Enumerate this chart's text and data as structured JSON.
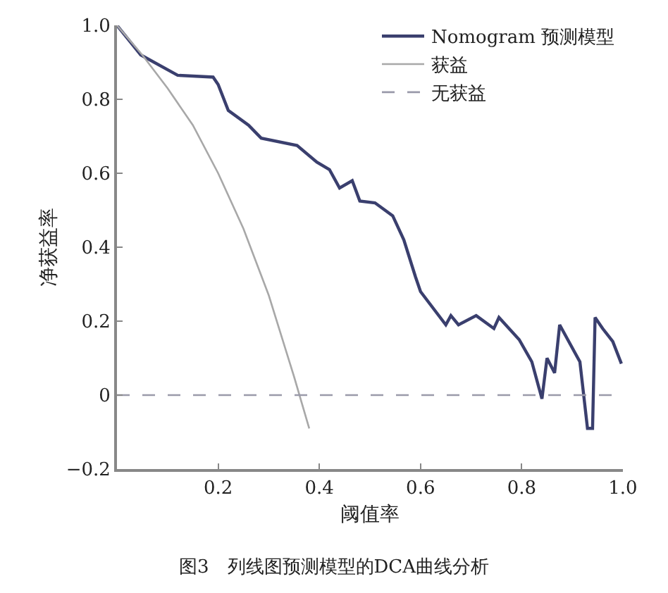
{
  "chart_data": {
    "type": "line",
    "title": "图3　列线图预测模型的DCA曲线分析",
    "xlabel": "阈值率",
    "ylabel": "净获益率",
    "xlim": [
      0,
      1.0
    ],
    "ylim": [
      -0.2,
      1.0
    ],
    "xticks": [
      0.2,
      0.4,
      0.6,
      0.8,
      {
        "value": 1.0,
        "label": "1.0"
      }
    ],
    "yticks": [
      {
        "value": -0.2,
        "label": "−0.2"
      },
      0,
      0.2,
      0.4,
      0.6,
      0.8,
      {
        "value": 1.0,
        "label": "1.0"
      }
    ],
    "legend": "top right",
    "series": [
      {
        "name": "Nomogram 预测模型",
        "color": "#3a3f6e",
        "line_style": "solid",
        "x": [
          0,
          0.047,
          0.12,
          0.19,
          0.2,
          0.22,
          0.26,
          0.285,
          0.356,
          0.395,
          0.42,
          0.44,
          0.465,
          0.48,
          0.51,
          0.545,
          0.567,
          0.59,
          0.6,
          0.65,
          0.66,
          0.675,
          0.71,
          0.745,
          0.755,
          0.795,
          0.82,
          0.84,
          0.85,
          0.865,
          0.875,
          0.915,
          0.93,
          0.94,
          0.945,
          0.96,
          0.98,
          0.997
        ],
        "values": [
          1.0,
          0.92,
          0.865,
          0.86,
          0.84,
          0.77,
          0.73,
          0.695,
          0.675,
          0.63,
          0.61,
          0.56,
          0.58,
          0.525,
          0.52,
          0.485,
          0.42,
          0.32,
          0.28,
          0.19,
          0.215,
          0.19,
          0.215,
          0.18,
          0.21,
          0.15,
          0.09,
          -0.01,
          0.1,
          0.06,
          0.19,
          0.09,
          -0.09,
          -0.09,
          0.21,
          0.18,
          0.145,
          0.085
        ]
      },
      {
        "name": "获益",
        "color": "#a8a8a8",
        "line_style": "solid",
        "x": [
          0,
          0.05,
          0.1,
          0.15,
          0.2,
          0.25,
          0.3,
          0.35,
          0.38
        ],
        "values": [
          1.0,
          0.92,
          0.83,
          0.73,
          0.6,
          0.45,
          0.27,
          0.05,
          -0.09
        ]
      },
      {
        "name": "无获益",
        "color": "#9a9aaa",
        "line_style": "dashed",
        "x": [
          0,
          1.0
        ],
        "values": [
          0,
          0
        ]
      }
    ]
  }
}
